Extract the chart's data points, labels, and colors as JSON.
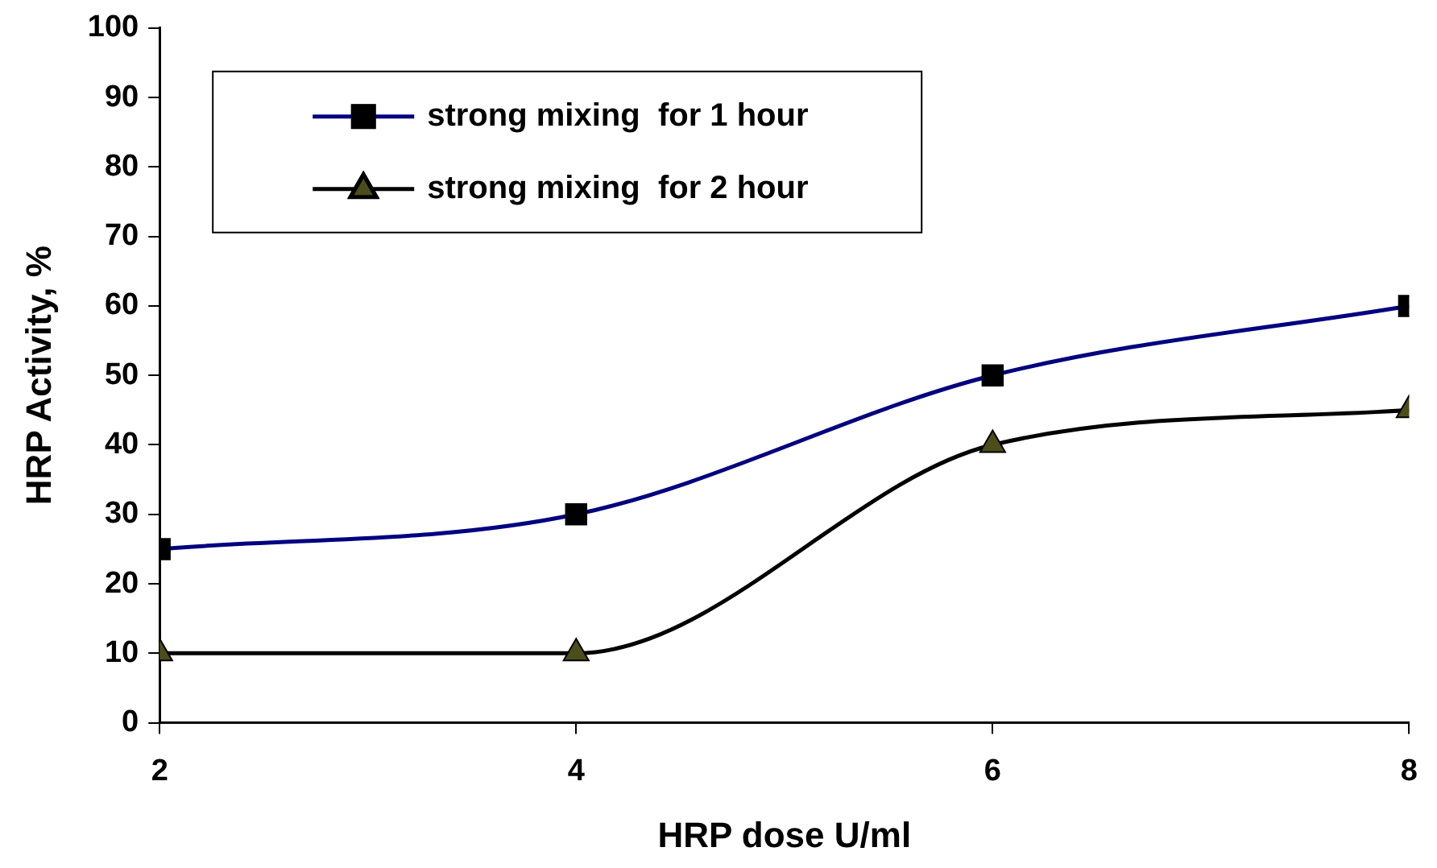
{
  "chart_data": {
    "type": "line",
    "xlabel": "HRP dose U/ml",
    "ylabel": "HRP Activity, %",
    "x": [
      2,
      4,
      6,
      8
    ],
    "series": [
      {
        "name": "strong mixing  for 1 hour",
        "color": "#000080",
        "marker": "square",
        "values": [
          25,
          30,
          50,
          60
        ]
      },
      {
        "name": "strong mixing  for 2 hour",
        "color": "#000000",
        "marker": "triangle",
        "values": [
          10,
          10,
          40,
          45
        ]
      }
    ],
    "xlim": [
      2,
      8
    ],
    "xticks": [
      2,
      4,
      6,
      8
    ],
    "ylim": [
      0,
      100
    ],
    "yticks": [
      0,
      10,
      20,
      30,
      40,
      50,
      60,
      70,
      80,
      90,
      100
    ],
    "grid": false,
    "legend": "top left"
  }
}
